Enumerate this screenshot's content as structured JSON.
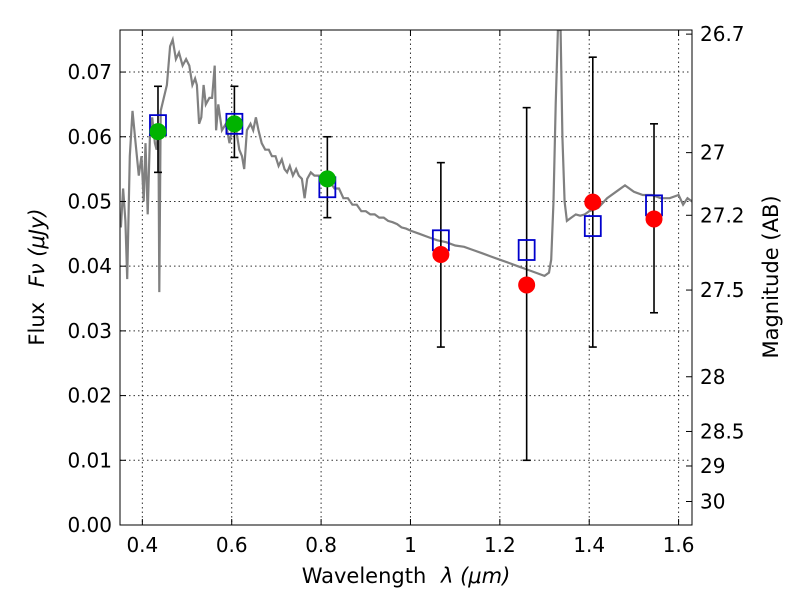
{
  "chart_data": {
    "type": "scatter",
    "xlabel_main": "Wavelength",
    "xlabel_math": "λ (μm)",
    "ylabel_main": "Flux",
    "ylabel_math": "Fν (μJy)",
    "y2label": "Magnitude (AB)",
    "xlim": [
      0.35,
      1.63
    ],
    "ylim": [
      0.0,
      0.0765
    ],
    "grid": true,
    "x_ticks": [
      {
        "value": 0.4,
        "label": "0.4"
      },
      {
        "value": 0.6,
        "label": "0.6"
      },
      {
        "value": 0.8,
        "label": "0.8"
      },
      {
        "value": 1.0,
        "label": "1"
      },
      {
        "value": 1.2,
        "label": "1.2"
      },
      {
        "value": 1.4,
        "label": "1.4"
      },
      {
        "value": 1.6,
        "label": "1.6"
      }
    ],
    "y_ticks": [
      {
        "value": 0.0,
        "label": "0.00"
      },
      {
        "value": 0.01,
        "label": "0.01"
      },
      {
        "value": 0.02,
        "label": "0.02"
      },
      {
        "value": 0.03,
        "label": "0.03"
      },
      {
        "value": 0.04,
        "label": "0.04"
      },
      {
        "value": 0.05,
        "label": "0.05"
      },
      {
        "value": 0.06,
        "label": "0.06"
      },
      {
        "value": 0.07,
        "label": "0.07"
      }
    ],
    "mag_ticks": [
      {
        "value": 26.7,
        "label": "26.7"
      },
      {
        "value": 27.0,
        "label": "27"
      },
      {
        "value": 27.2,
        "label": "27.2"
      },
      {
        "value": 27.5,
        "label": "27.5"
      },
      {
        "value": 28.0,
        "label": "28"
      },
      {
        "value": 28.5,
        "label": "28.5"
      },
      {
        "value": 29.0,
        "label": "29"
      },
      {
        "value": 30.0,
        "label": "30"
      }
    ],
    "model_spectrum": {
      "color": "#808080",
      "points": [
        [
          0.352,
          0.046
        ],
        [
          0.357,
          0.052
        ],
        [
          0.362,
          0.047
        ],
        [
          0.366,
          0.038
        ],
        [
          0.372,
          0.057
        ],
        [
          0.378,
          0.064
        ],
        [
          0.385,
          0.059
        ],
        [
          0.392,
          0.054
        ],
        [
          0.398,
          0.057
        ],
        [
          0.403,
          0.05
        ],
        [
          0.407,
          0.059
        ],
        [
          0.412,
          0.048
        ],
        [
          0.417,
          0.06
        ],
        [
          0.422,
          0.063
        ],
        [
          0.428,
          0.059
        ],
        [
          0.432,
          0.058
        ],
        [
          0.436,
          0.062
        ],
        [
          0.438,
          0.036
        ],
        [
          0.441,
          0.064
        ],
        [
          0.448,
          0.066
        ],
        [
          0.455,
          0.068
        ],
        [
          0.462,
          0.074
        ],
        [
          0.468,
          0.075
        ],
        [
          0.475,
          0.072
        ],
        [
          0.482,
          0.073
        ],
        [
          0.49,
          0.071
        ],
        [
          0.498,
          0.072
        ],
        [
          0.505,
          0.071
        ],
        [
          0.512,
          0.068
        ],
        [
          0.518,
          0.069
        ],
        [
          0.522,
          0.068
        ],
        [
          0.527,
          0.062
        ],
        [
          0.532,
          0.063
        ],
        [
          0.537,
          0.068
        ],
        [
          0.542,
          0.065
        ],
        [
          0.55,
          0.066
        ],
        [
          0.556,
          0.066
        ],
        [
          0.562,
          0.071
        ],
        [
          0.565,
          0.061
        ],
        [
          0.57,
          0.065
        ],
        [
          0.578,
          0.061
        ],
        [
          0.587,
          0.062
        ],
        [
          0.595,
          0.059
        ],
        [
          0.603,
          0.062
        ],
        [
          0.61,
          0.061
        ],
        [
          0.617,
          0.058
        ],
        [
          0.623,
          0.057
        ],
        [
          0.628,
          0.055
        ],
        [
          0.634,
          0.061
        ],
        [
          0.642,
          0.062
        ],
        [
          0.648,
          0.061
        ],
        [
          0.654,
          0.063
        ],
        [
          0.66,
          0.061
        ],
        [
          0.667,
          0.059
        ],
        [
          0.675,
          0.058
        ],
        [
          0.683,
          0.058
        ],
        [
          0.69,
          0.057
        ],
        [
          0.698,
          0.057
        ],
        [
          0.705,
          0.0555
        ],
        [
          0.712,
          0.0565
        ],
        [
          0.718,
          0.055
        ],
        [
          0.724,
          0.0545
        ],
        [
          0.73,
          0.0555
        ],
        [
          0.737,
          0.054
        ],
        [
          0.744,
          0.055
        ],
        [
          0.75,
          0.054
        ],
        [
          0.757,
          0.0535
        ],
        [
          0.763,
          0.0505
        ],
        [
          0.769,
          0.0535
        ],
        [
          0.777,
          0.0545
        ],
        [
          0.785,
          0.054
        ],
        [
          0.793,
          0.054
        ],
        [
          0.801,
          0.054
        ],
        [
          0.81,
          0.054
        ],
        [
          0.82,
          0.053
        ],
        [
          0.83,
          0.052
        ],
        [
          0.84,
          0.052
        ],
        [
          0.85,
          0.0505
        ],
        [
          0.86,
          0.0505
        ],
        [
          0.87,
          0.0495
        ],
        [
          0.88,
          0.0495
        ],
        [
          0.89,
          0.0485
        ],
        [
          0.9,
          0.0485
        ],
        [
          0.91,
          0.048
        ],
        [
          0.92,
          0.048
        ],
        [
          0.93,
          0.0475
        ],
        [
          0.94,
          0.0475
        ],
        [
          0.95,
          0.047
        ],
        [
          0.96,
          0.0468
        ],
        [
          0.97,
          0.0465
        ],
        [
          0.98,
          0.046
        ],
        [
          0.99,
          0.0458
        ],
        [
          1.0,
          0.0455
        ],
        [
          1.02,
          0.045
        ],
        [
          1.04,
          0.0445
        ],
        [
          1.06,
          0.044
        ],
        [
          1.08,
          0.0437
        ],
        [
          1.1,
          0.0432
        ],
        [
          1.12,
          0.043
        ],
        [
          1.14,
          0.0425
        ],
        [
          1.16,
          0.042
        ],
        [
          1.18,
          0.0415
        ],
        [
          1.2,
          0.041
        ],
        [
          1.22,
          0.0405
        ],
        [
          1.24,
          0.04
        ],
        [
          1.26,
          0.0395
        ],
        [
          1.28,
          0.039
        ],
        [
          1.3,
          0.0385
        ],
        [
          1.31,
          0.039
        ],
        [
          1.315,
          0.041
        ],
        [
          1.32,
          0.05
        ],
        [
          1.325,
          0.065
        ],
        [
          1.33,
          0.0765
        ],
        [
          1.336,
          0.0765
        ],
        [
          1.34,
          0.06
        ],
        [
          1.345,
          0.05
        ],
        [
          1.35,
          0.047
        ],
        [
          1.36,
          0.0475
        ],
        [
          1.37,
          0.048
        ],
        [
          1.38,
          0.0478
        ],
        [
          1.39,
          0.048
        ],
        [
          1.4,
          0.0485
        ],
        [
          1.42,
          0.049
        ],
        [
          1.44,
          0.0505
        ],
        [
          1.46,
          0.0515
        ],
        [
          1.48,
          0.0525
        ],
        [
          1.5,
          0.0515
        ],
        [
          1.52,
          0.051
        ],
        [
          1.54,
          0.051
        ],
        [
          1.56,
          0.0505
        ],
        [
          1.58,
          0.0505
        ],
        [
          1.6,
          0.051
        ],
        [
          1.61,
          0.0495
        ],
        [
          1.62,
          0.0505
        ],
        [
          1.63,
          0.05
        ]
      ]
    },
    "model_photometry": {
      "marker": "open-square",
      "color": "#0000cc",
      "points": [
        {
          "x": 0.435,
          "y": 0.0618
        },
        {
          "x": 0.606,
          "y": 0.062
        },
        {
          "x": 0.814,
          "y": 0.0522
        },
        {
          "x": 1.068,
          "y": 0.044
        },
        {
          "x": 1.26,
          "y": 0.0425
        },
        {
          "x": 1.408,
          "y": 0.0462
        },
        {
          "x": 1.545,
          "y": 0.0494
        }
      ]
    },
    "observed_photometry": [
      {
        "x": 0.435,
        "y": 0.0608,
        "err_low": 0.0545,
        "err_high": 0.0678,
        "color": "#00b300"
      },
      {
        "x": 0.606,
        "y": 0.062,
        "err_low": 0.0568,
        "err_high": 0.0678,
        "color": "#00b300"
      },
      {
        "x": 0.814,
        "y": 0.0535,
        "err_low": 0.0475,
        "err_high": 0.06,
        "color": "#00b300"
      },
      {
        "x": 1.068,
        "y": 0.0418,
        "err_low": 0.0275,
        "err_high": 0.056,
        "color": "#ff0000"
      },
      {
        "x": 1.26,
        "y": 0.0371,
        "err_low": 0.01,
        "err_high": 0.0645,
        "color": "#ff0000"
      },
      {
        "x": 1.408,
        "y": 0.0499,
        "err_low": 0.0275,
        "err_high": 0.0723,
        "color": "#ff0000"
      },
      {
        "x": 1.545,
        "y": 0.0473,
        "err_low": 0.0328,
        "err_high": 0.062,
        "color": "#ff0000"
      }
    ]
  }
}
